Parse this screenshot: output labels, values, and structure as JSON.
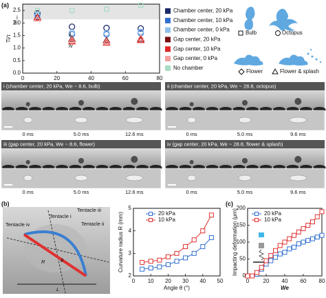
{
  "chart_data": [
    {
      "type": "scatter",
      "xlabel": "We",
      "ylabel": "Ti/τ",
      "x": [
        8.6,
        28.8,
        49,
        69
      ],
      "xlim": [
        0,
        80
      ],
      "xticks": [
        0,
        20,
        40,
        60,
        80
      ],
      "ylim": [
        0,
        2.75
      ],
      "yticks": [
        {
          "value": 0,
          "label": "0.0"
        },
        {
          "value": 0.5,
          "label": "0.5"
        },
        {
          "value": 1,
          "label": "1.0"
        },
        {
          "value": 1.5,
          "label": "1.5"
        },
        {
          "value": 2,
          "label": "2.0"
        },
        {
          "value": 2.5,
          "label": "2.5"
        }
      ],
      "series": [
        {
          "name": "Chamber center, 20 kPa",
          "color": "#1b2a6b",
          "marker": "circle",
          "values": [
            2.38,
            1.85,
            1.8,
            1.78
          ]
        },
        {
          "name": "Chamber center, 10 kPa",
          "color": "#2f6fd0",
          "marker": "circle",
          "values": [
            2.32,
            1.55,
            1.55,
            1.6
          ]
        },
        {
          "name": "Chamber center, 0 kPa",
          "color": "#8fc0ee",
          "marker": "circle",
          "values": [
            2.27,
            1.62,
            1.6,
            1.65
          ]
        },
        {
          "name": "Gap center, 20 kPa",
          "color": "#7a1010",
          "marker": "triangle",
          "values": [
            2.22,
            1.35,
            1.3,
            1.35
          ]
        },
        {
          "name": "Gap center, 10 kPa",
          "color": "#e02828",
          "marker": "triangle",
          "values": [
            2.2,
            1.25,
            1.2,
            1.3
          ]
        },
        {
          "name": "Gap center, 0 kPa",
          "color": "#f4a0a0",
          "marker": "triangle",
          "values": [
            2.16,
            1.3,
            1.25,
            1.4
          ]
        },
        {
          "name": "No chamber",
          "color": "#a8dcc4",
          "marker": "square",
          "values": [
            2.5,
            2.5,
            2.55,
            2.7
          ]
        }
      ],
      "annotations": [
        "i",
        "ii",
        "iii",
        "iv"
      ]
    },
    {
      "type": "line",
      "xlabel": "Angle θ (°)",
      "ylabel": "Curvature radius R (mm)",
      "x": [
        5,
        10,
        15,
        20,
        25,
        30,
        35,
        40,
        45
      ],
      "xlim": [
        0,
        50
      ],
      "xticks": [
        0,
        10,
        20,
        30,
        40,
        50
      ],
      "ylim": [
        2,
        5
      ],
      "yticks": [
        2,
        3,
        4,
        5
      ],
      "series": [
        {
          "name": "20 kPa",
          "color": "#2f6fd0",
          "values": [
            2.3,
            2.35,
            2.4,
            2.5,
            2.65,
            2.8,
            3.0,
            3.3,
            3.7
          ]
        },
        {
          "name": "10 kPa",
          "color": "#e03030",
          "values": [
            2.6,
            2.65,
            2.7,
            2.85,
            3.0,
            3.3,
            3.6,
            4.0,
            4.7
          ]
        }
      ]
    },
    {
      "type": "line",
      "xlabel": "We",
      "ylabel": "Impacting deformation (μm)",
      "x": [
        0,
        5,
        10,
        15,
        20,
        25,
        30,
        35,
        40,
        45,
        50,
        55,
        60,
        65,
        70,
        75,
        80
      ],
      "xlim": [
        0,
        80
      ],
      "xticks": [
        0,
        20,
        40,
        60,
        80
      ],
      "ylim": [
        0,
        200
      ],
      "yticks": [
        0,
        50,
        100,
        150,
        200
      ],
      "series": [
        {
          "name": "20 kPa",
          "color": "#2f6fd0",
          "values": [
            0,
            0,
            5,
            20,
            35,
            45,
            55,
            65,
            70,
            80,
            85,
            95,
            100,
            105,
            110,
            115,
            120
          ]
        },
        {
          "name": "10 kPa",
          "color": "#e03030",
          "values": [
            0,
            0,
            10,
            25,
            45,
            60,
            75,
            90,
            100,
            110,
            120,
            130,
            140,
            150,
            160,
            175,
            190
          ]
        }
      ]
    }
  ],
  "panel_labels": [
    "(a)",
    "(b)",
    "(c)"
  ],
  "shapes": [
    "Bulb",
    "Octopus",
    "Flower",
    "Flower & splash"
  ],
  "photos": [
    {
      "caption": "i (chamber center, 20 kPa, We ~ 8.6, bulb)",
      "times": [
        "0 ms",
        "5.0 ms",
        "12.6 ms"
      ]
    },
    {
      "caption": "ii (chamber center, 20 kPa, We ~ 28.8, octopus)",
      "times": [
        "0 ms",
        "5.0 ms",
        "9.6 ms"
      ]
    },
    {
      "caption": "iii (gap center, 20 kPa, We ~ 8.6, flower)",
      "times": [
        "0 ms",
        "5.0 ms",
        "12.6 ms"
      ]
    },
    {
      "caption": "iv (gap center, 20 kPa, We ~ 28.8, flower & splash)",
      "times": [
        "0 ms",
        "5.0 ms",
        "9.6 ms"
      ]
    }
  ],
  "diagram_labels": [
    "Tentacle i",
    "Tentacle iii",
    "Tentacle ii",
    "Tentacle iv",
    "R",
    "θ",
    "L"
  ]
}
